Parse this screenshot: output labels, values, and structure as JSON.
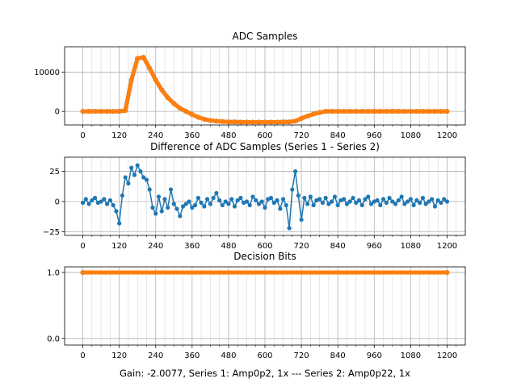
{
  "chart_data": [
    {
      "type": "line",
      "title": "ADC Samples",
      "xlim": [
        -60,
        1260
      ],
      "ylim": [
        -3470,
        16500
      ],
      "xticks": [
        0,
        120,
        240,
        360,
        480,
        600,
        720,
        840,
        960,
        1080,
        1200
      ],
      "yticks": [
        0,
        10000
      ],
      "ytick_labels": [
        "0",
        "10000"
      ],
      "grid": "on (major and minor x, major y)",
      "series": [
        {
          "name": "Series 1",
          "color": "#1f77b4",
          "step": 20,
          "values": [
            0,
            0,
            0,
            0,
            0,
            0,
            0,
            200,
            8000,
            13500,
            13800,
            11000,
            8000,
            5500,
            3500,
            2000,
            800,
            0,
            -800,
            -1500,
            -2000,
            -2300,
            -2500,
            -2600,
            -2700,
            -2700,
            -2750,
            -2750,
            -2750,
            -2750,
            -2750,
            -2750,
            -2750,
            -2700,
            -2700,
            -2500,
            -1800,
            -1200,
            -700,
            -300,
            0,
            0,
            0,
            0,
            0,
            0,
            0,
            0,
            0,
            0,
            0,
            0,
            0,
            0,
            0,
            0,
            0,
            0,
            0,
            0,
            0
          ]
        },
        {
          "name": "Series 2",
          "color": "#ff7f0e",
          "step": 20,
          "values": [
            0,
            0,
            0,
            0,
            0,
            0,
            0,
            200,
            8000,
            13500,
            13800,
            11000,
            8000,
            5500,
            3500,
            2000,
            800,
            0,
            -800,
            -1500,
            -2000,
            -2300,
            -2500,
            -2600,
            -2700,
            -2700,
            -2750,
            -2750,
            -2750,
            -2750,
            -2750,
            -2750,
            -2750,
            -2700,
            -2700,
            -2500,
            -1800,
            -1200,
            -700,
            -300,
            0,
            0,
            0,
            0,
            0,
            0,
            0,
            0,
            0,
            0,
            0,
            0,
            0,
            0,
            0,
            0,
            0,
            0,
            0,
            0,
            0
          ]
        }
      ]
    },
    {
      "type": "line",
      "title": "Difference of ADC Samples (Series 1 - Series 2)",
      "xlim": [
        -60,
        1260
      ],
      "ylim": [
        -28,
        36.7
      ],
      "xticks": [
        0,
        120,
        240,
        360,
        480,
        600,
        720,
        840,
        960,
        1080,
        1200
      ],
      "yticks": [
        -25,
        0,
        25
      ],
      "ytick_labels": [
        "−25",
        "0",
        "25"
      ],
      "series": [
        {
          "name": "Difference",
          "color": "#1f77b4",
          "step": 10,
          "values": [
            -1,
            2,
            -2,
            1,
            3,
            -1,
            0,
            2,
            -2,
            1,
            -3,
            -8,
            -18,
            5,
            20,
            15,
            28,
            22,
            30,
            25,
            20,
            18,
            10,
            -5,
            -10,
            4,
            -8,
            2,
            -5,
            10,
            -2,
            -6,
            -12,
            -4,
            -2,
            0,
            -5,
            -3,
            3,
            -1,
            -4,
            2,
            -2,
            3,
            7,
            1,
            -3,
            0,
            -2,
            2,
            -4,
            1,
            3,
            -1,
            0,
            -3,
            4,
            1,
            -2,
            0,
            -5,
            2,
            3,
            -1,
            1,
            -6,
            2,
            -3,
            -22,
            10,
            25,
            5,
            -15,
            3,
            -2,
            4,
            -3,
            1,
            2,
            -1,
            3,
            -2,
            0,
            4,
            -3,
            1,
            2,
            -2,
            0,
            3,
            -1,
            1,
            -3,
            2,
            4,
            -2,
            0,
            1,
            -3,
            2,
            -1,
            3,
            0,
            -2,
            1,
            4,
            -2,
            0,
            2,
            -3,
            1,
            -1,
            3,
            -2,
            0,
            2,
            -4,
            1,
            -1,
            2,
            0
          ]
        }
      ]
    },
    {
      "type": "line",
      "title": "Decision Bits",
      "xlim": [
        -60,
        1260
      ],
      "ylim": [
        -0.1,
        1.085
      ],
      "xticks": [
        0,
        120,
        240,
        360,
        480,
        600,
        720,
        840,
        960,
        1080,
        1200
      ],
      "yticks": [
        0,
        1
      ],
      "ytick_labels": [
        "0.0",
        "1.0"
      ],
      "xlabel": "Gain: -2.0077, Series 1: Amp0p2, 1x --- Series 2: Amp0p22, 1x",
      "series": [
        {
          "name": "Series 1",
          "color": "#1f77b4",
          "step": 1200,
          "values": [
            1,
            1
          ]
        },
        {
          "name": "Series 2",
          "color": "#ff7f0e",
          "step": 1200,
          "values": [
            1,
            1
          ]
        }
      ]
    }
  ]
}
